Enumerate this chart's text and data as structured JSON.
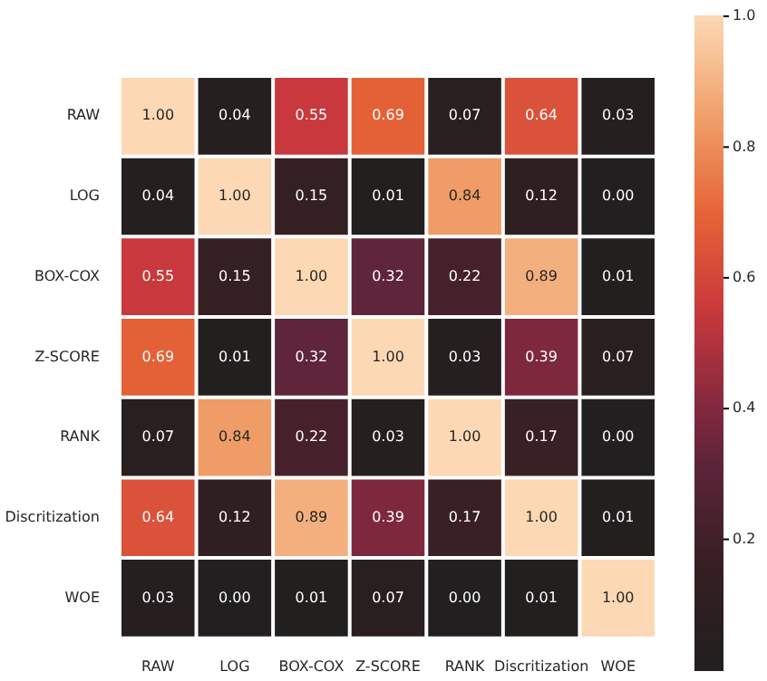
{
  "chart_data": {
    "type": "heatmap",
    "categories": [
      "RAW",
      "LOG",
      "BOX-COX",
      "Z-SCORE",
      "RANK",
      "Discritization",
      "WOE"
    ],
    "y_categories": [
      "RAW",
      "LOG",
      "BOX-COX",
      "Z-SCORE",
      "RANK",
      "Discritization",
      "WOE"
    ],
    "cells": [
      [
        1.0,
        0.04,
        0.55,
        0.69,
        0.07,
        0.64,
        0.03
      ],
      [
        0.04,
        1.0,
        0.15,
        0.01,
        0.84,
        0.12,
        0.0
      ],
      [
        0.55,
        0.15,
        1.0,
        0.32,
        0.22,
        0.89,
        0.01
      ],
      [
        0.69,
        0.01,
        0.32,
        1.0,
        0.03,
        0.39,
        0.07
      ],
      [
        0.07,
        0.84,
        0.22,
        0.03,
        1.0,
        0.17,
        0.0
      ],
      [
        0.64,
        0.12,
        0.89,
        0.39,
        0.17,
        1.0,
        0.01
      ],
      [
        0.03,
        0.0,
        0.01,
        0.07,
        0.0,
        0.01,
        1.0
      ]
    ],
    "cell_labels": [
      [
        "1.00",
        "0.04",
        "0.55",
        "0.69",
        "0.07",
        "0.64",
        "0.03"
      ],
      [
        "0.04",
        "1.00",
        "0.15",
        "0.01",
        "0.84",
        "0.12",
        "0.00"
      ],
      [
        "0.55",
        "0.15",
        "1.00",
        "0.32",
        "0.22",
        "0.89",
        "0.01"
      ],
      [
        "0.69",
        "0.01",
        "0.32",
        "1.00",
        "0.03",
        "0.39",
        "0.07"
      ],
      [
        "0.07",
        "0.84",
        "0.22",
        "0.03",
        "1.00",
        "0.17",
        "0.00"
      ],
      [
        "0.64",
        "0.12",
        "0.89",
        "0.39",
        "0.17",
        "1.00",
        "0.01"
      ],
      [
        "0.03",
        "0.00",
        "0.01",
        "0.07",
        "0.00",
        "0.01",
        "1.00"
      ]
    ],
    "clim": [
      0,
      1
    ],
    "cticks": [
      0.2,
      0.4,
      0.6,
      0.8,
      {
        "value": 1,
        "label": "1.0"
      }
    ]
  }
}
